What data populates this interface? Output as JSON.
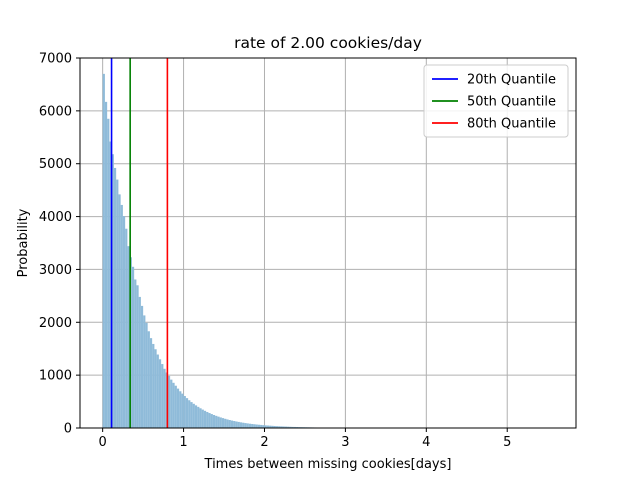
{
  "chart_data": {
    "type": "histogram",
    "title": "rate of 2.00 cookies/day",
    "xlabel": "Times between missing cookies[days]",
    "ylabel": "Probability",
    "xlim": [
      -0.28,
      5.85
    ],
    "ylim": [
      0,
      7000
    ],
    "xticks": [
      0,
      1,
      2,
      3,
      4,
      5
    ],
    "yticks": [
      0,
      1000,
      2000,
      3000,
      4000,
      5000,
      6000,
      7000
    ],
    "grid": true,
    "bar_color": "#8fbbd9",
    "bin_width": 0.0278,
    "bin_start": 0.0,
    "counts": [
      6700,
      6170,
      5850,
      5420,
      5180,
      4920,
      4700,
      4420,
      4220,
      4010,
      3770,
      3440,
      3230,
      3050,
      2810,
      2700,
      2480,
      2310,
      2130,
      1990,
      1830,
      1700,
      1590,
      1490,
      1390,
      1300,
      1210,
      1120,
      1050,
      985,
      915,
      855,
      800,
      745,
      695,
      650,
      605,
      565,
      525,
      490,
      458,
      428,
      400,
      373,
      348,
      325,
      303,
      283,
      264,
      246,
      230,
      215,
      200,
      187,
      174,
      162,
      151,
      141,
      132,
      123,
      115,
      107,
      100,
      93,
      87,
      81,
      76,
      71,
      66,
      62,
      58,
      54,
      50,
      47,
      44,
      41,
      38,
      35,
      33,
      31,
      29,
      27,
      25,
      23,
      21,
      20,
      19,
      17,
      16,
      15,
      14,
      13,
      12,
      11,
      10,
      9,
      9,
      8,
      7,
      7,
      6,
      6,
      5,
      5,
      5,
      4,
      4,
      4,
      3,
      3,
      3,
      3,
      2,
      2,
      2,
      2,
      2,
      2,
      1,
      1,
      1,
      1,
      1,
      1,
      1,
      1,
      1,
      1,
      1,
      1,
      1,
      1,
      1,
      1,
      1,
      1,
      1,
      1,
      1,
      1,
      1,
      1,
      1,
      1,
      1,
      1,
      1,
      1,
      1,
      1,
      1,
      1,
      1,
      1,
      1,
      1,
      1,
      1,
      1,
      1,
      1,
      1,
      1,
      1,
      1,
      1,
      1,
      1,
      1,
      1,
      1,
      1,
      1,
      1,
      1,
      1,
      1,
      1,
      1,
      1,
      1,
      1,
      1,
      1,
      1,
      1,
      1,
      1,
      1,
      1,
      1,
      1,
      1,
      1,
      1,
      1,
      1,
      1,
      1,
      1,
      1
    ],
    "quantiles": [
      {
        "name": "20th Quantile",
        "x": 0.11,
        "color": "#0000ff"
      },
      {
        "name": "50th Quantile",
        "x": 0.34,
        "color": "#008000"
      },
      {
        "name": "80th Quantile",
        "x": 0.8,
        "color": "#ff0000"
      }
    ],
    "legend_position": "top-right"
  }
}
